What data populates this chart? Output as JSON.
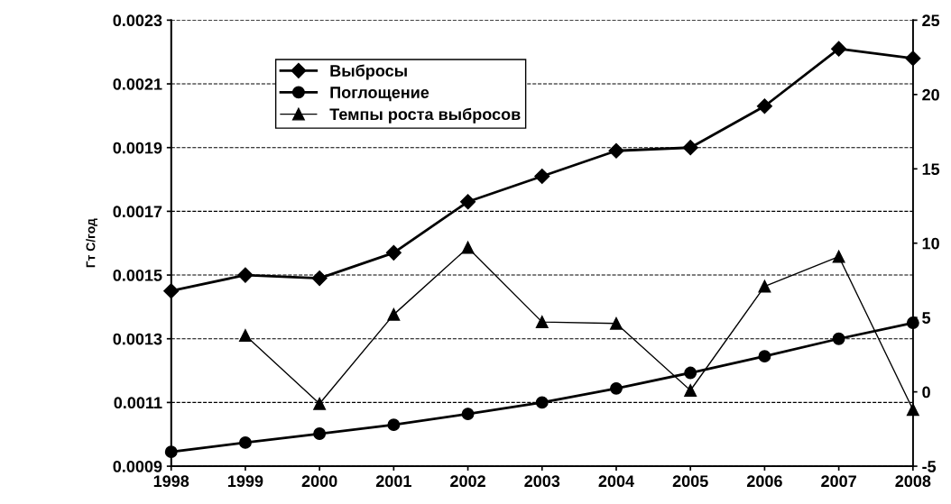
{
  "chart_data": {
    "type": "line",
    "ylabel": "Гт С/год",
    "categories": [
      "1998",
      "1999",
      "2000",
      "2001",
      "2002",
      "2003",
      "2004",
      "2005",
      "2006",
      "2007",
      "2008"
    ],
    "series": [
      {
        "name": "Выбросы",
        "color": "#000000",
        "marker": "diamond",
        "values": [
          0.00145,
          0.0015,
          0.00149,
          0.00157,
          0.00173,
          0.00181,
          0.00189,
          0.0019,
          0.00203,
          0.00221,
          0.00218
        ]
      },
      {
        "name": "Поглощение",
        "color": "#000000",
        "marker": "circle",
        "values": [
          0.000945,
          0.000974,
          0.001002,
          0.00103,
          0.001064,
          0.0011,
          0.001144,
          0.001193,
          0.001245,
          0.0013,
          0.00135
        ]
      },
      {
        "name": "Темпы роста выбросов",
        "color": "#000000",
        "marker": "triangle",
        "axis": "y2",
        "values": [
          null,
          3.8,
          -0.8,
          5.2,
          9.7,
          4.7,
          4.6,
          0.1,
          7.1,
          9.1,
          -1.2
        ]
      }
    ],
    "ylim": [
      0.0009,
      0.0023
    ],
    "yticks": [
      0.0009,
      0.0011,
      0.0013,
      0.0015,
      0.0017,
      0.0019,
      0.0021,
      0.0023
    ],
    "y2lim": [
      -5,
      25
    ],
    "y2ticks": [
      -5,
      0,
      5,
      10,
      15,
      20,
      25
    ],
    "grid": "y",
    "legend": "top left",
    "line_style": "solid"
  }
}
